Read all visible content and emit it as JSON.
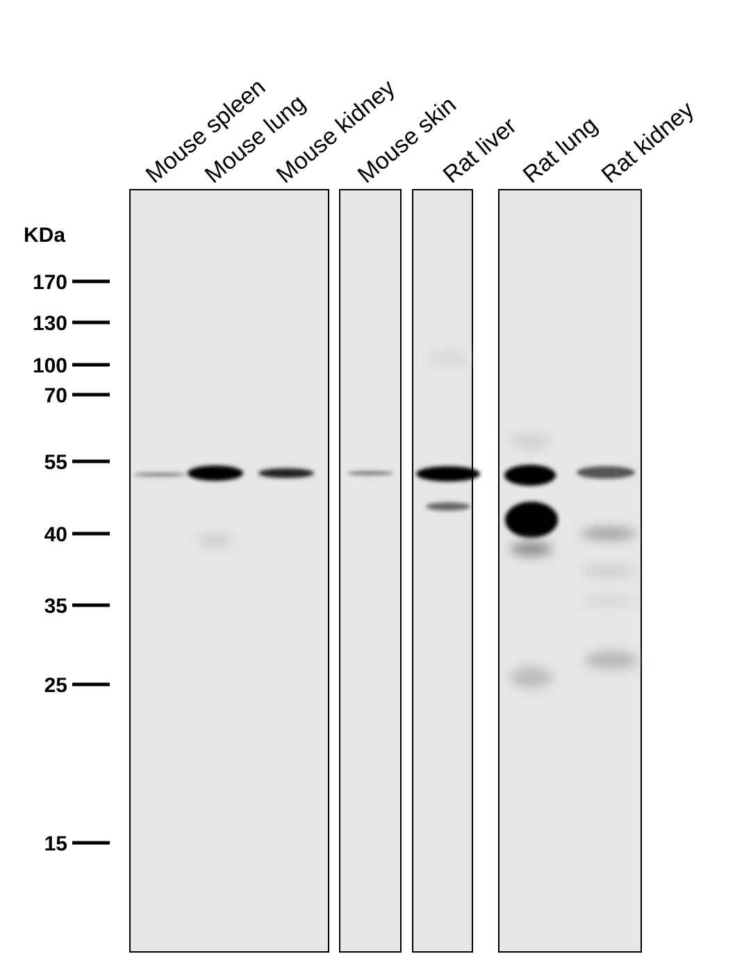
{
  "lanes": [
    "Mouse spleen",
    "Mouse lung",
    "Mouse kidney",
    "Mouse skin",
    "Rat liver",
    "Rat lung",
    "Rat kidney"
  ],
  "unit": "KDa",
  "markers": [
    "170",
    "130",
    "100",
    "70",
    "55",
    "40",
    "35",
    "25",
    "15"
  ]
}
